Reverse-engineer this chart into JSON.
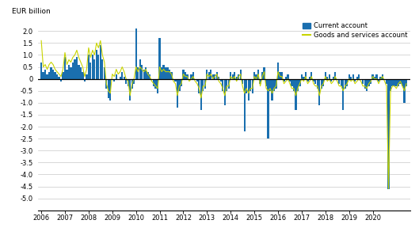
{
  "ylabel": "EUR billion",
  "ylim": [
    -5.5,
    2.5
  ],
  "yticks": [
    -5.0,
    -4.5,
    -4.0,
    -3.5,
    -3.0,
    -2.5,
    -2.0,
    -1.5,
    -1.0,
    -0.5,
    0.0,
    0.5,
    1.0,
    1.5,
    2.0
  ],
  "bar_color": "#1a6faf",
  "line_color": "#c8d400",
  "background_color": "#ffffff",
  "grid_color": "#c8c8c8",
  "legend_bar_label": "Current account",
  "legend_line_label": "Goods and services account",
  "bar_values": [
    0.7,
    0.3,
    0.4,
    0.2,
    0.3,
    0.5,
    0.4,
    0.3,
    0.2,
    0.1,
    -0.1,
    0.3,
    0.9,
    0.4,
    0.6,
    0.5,
    0.7,
    0.8,
    0.9,
    0.6,
    0.5,
    0.3,
    -0.1,
    0.2,
    1.0,
    0.7,
    1.0,
    0.8,
    1.2,
    1.0,
    1.4,
    0.8,
    0.5,
    -0.4,
    -0.8,
    -0.9,
    0.0,
    -0.1,
    0.2,
    0.0,
    0.1,
    0.3,
    0.1,
    -0.2,
    -0.3,
    -0.9,
    -0.4,
    -0.2,
    2.1,
    0.5,
    0.8,
    0.6,
    0.4,
    0.5,
    0.3,
    0.2,
    0.0,
    -0.3,
    -0.4,
    -0.6,
    1.7,
    0.5,
    0.6,
    0.5,
    0.5,
    0.4,
    0.3,
    0.0,
    -0.1,
    -1.2,
    -0.5,
    -0.3,
    0.4,
    0.3,
    0.2,
    0.0,
    0.2,
    0.3,
    0.0,
    -0.1,
    -0.6,
    -1.3,
    -0.5,
    -0.4,
    0.4,
    0.3,
    0.4,
    0.2,
    0.2,
    0.3,
    0.1,
    -0.1,
    -0.5,
    -1.1,
    -0.5,
    -0.4,
    0.3,
    0.2,
    0.3,
    0.1,
    0.2,
    0.4,
    -0.2,
    -2.2,
    -0.6,
    -0.9,
    -0.5,
    -0.6,
    0.3,
    0.2,
    0.4,
    -0.2,
    0.3,
    0.5,
    -0.3,
    -2.5,
    -0.5,
    -0.9,
    -0.5,
    -0.4,
    0.7,
    0.3,
    0.3,
    -0.1,
    0.1,
    0.2,
    -0.1,
    -0.3,
    -0.5,
    -1.3,
    -0.5,
    -0.3,
    0.2,
    0.1,
    0.3,
    -0.1,
    0.1,
    0.3,
    -0.1,
    -0.2,
    -0.4,
    -1.1,
    -0.4,
    -0.3,
    0.3,
    0.1,
    0.2,
    -0.1,
    0.1,
    0.3,
    0.0,
    -0.2,
    -0.3,
    -1.3,
    -0.4,
    -0.3,
    0.2,
    0.1,
    0.2,
    -0.1,
    0.1,
    0.2,
    0.0,
    -0.2,
    -0.4,
    -0.5,
    -0.3,
    -0.2,
    0.2,
    0.1,
    0.2,
    -0.1,
    0.1,
    0.2,
    0.0,
    -0.2,
    -4.6,
    -0.5,
    -0.3,
    -0.3,
    -0.3,
    -0.3,
    -0.2,
    -0.3,
    -1.0,
    -0.3
  ],
  "line_values": [
    1.6,
    0.5,
    0.6,
    0.4,
    0.6,
    0.7,
    0.6,
    0.4,
    0.3,
    0.2,
    0.1,
    0.4,
    1.1,
    0.6,
    0.8,
    0.7,
    0.9,
    1.0,
    1.2,
    0.9,
    0.7,
    0.5,
    0.1,
    0.4,
    1.3,
    0.9,
    1.2,
    1.0,
    1.5,
    1.3,
    1.6,
    1.0,
    0.7,
    -0.2,
    -0.5,
    -0.6,
    0.2,
    0.1,
    0.4,
    0.2,
    0.3,
    0.5,
    0.3,
    0.0,
    -0.1,
    -0.7,
    -0.2,
    0.0,
    0.5,
    0.3,
    0.5,
    0.4,
    0.3,
    0.4,
    0.2,
    0.1,
    -0.1,
    -0.2,
    -0.3,
    -0.4,
    0.5,
    0.3,
    0.4,
    0.3,
    0.3,
    0.3,
    0.2,
    -0.1,
    -0.2,
    -0.7,
    -0.3,
    -0.2,
    0.2,
    0.1,
    0.1,
    -0.1,
    0.0,
    0.1,
    -0.1,
    -0.2,
    -0.4,
    -0.8,
    -0.3,
    -0.3,
    0.2,
    0.1,
    0.2,
    0.0,
    0.1,
    0.2,
    -0.1,
    -0.2,
    -0.4,
    -0.7,
    -0.3,
    -0.3,
    0.1,
    0.0,
    0.1,
    -0.1,
    0.1,
    0.2,
    -0.3,
    -0.6,
    -0.4,
    -0.6,
    -0.4,
    -0.4,
    0.1,
    0.0,
    0.2,
    -0.3,
    0.1,
    0.3,
    -0.4,
    -0.5,
    -0.4,
    -0.6,
    -0.4,
    -0.3,
    0.3,
    0.1,
    0.1,
    -0.2,
    -0.1,
    0.0,
    -0.2,
    -0.4,
    -0.4,
    -0.7,
    -0.4,
    -0.2,
    0.0,
    -0.1,
    0.1,
    -0.2,
    -0.1,
    0.1,
    -0.2,
    -0.3,
    -0.3,
    -0.7,
    -0.3,
    -0.2,
    0.1,
    -0.1,
    0.0,
    -0.2,
    -0.1,
    0.1,
    -0.1,
    -0.3,
    -0.3,
    -0.5,
    -0.3,
    -0.2,
    0.0,
    -0.1,
    0.0,
    -0.2,
    -0.1,
    0.0,
    -0.1,
    -0.3,
    -0.3,
    -0.4,
    -0.2,
    -0.1,
    0.1,
    0.0,
    0.0,
    -0.2,
    0.0,
    0.1,
    -0.1,
    -0.3,
    -4.6,
    -0.5,
    -0.3,
    -0.3,
    -0.4,
    -0.2,
    -0.1,
    -0.3,
    -0.5,
    -0.2
  ],
  "start_year": 2006,
  "xtick_years": [
    2006,
    2007,
    2008,
    2009,
    2010,
    2011,
    2012,
    2013,
    2014,
    2015,
    2016,
    2017,
    2018,
    2019,
    2020
  ]
}
